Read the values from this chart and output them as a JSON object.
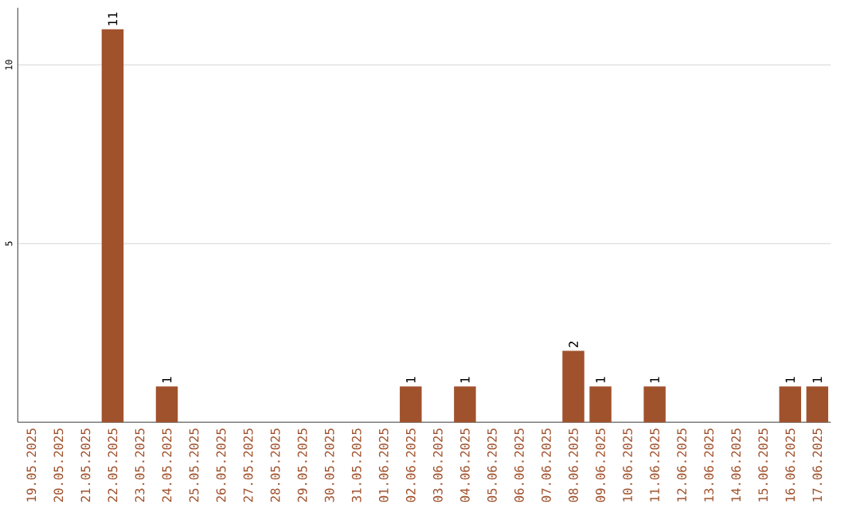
{
  "chart_data": {
    "type": "bar",
    "categories": [
      "19.05.2025",
      "20.05.2025",
      "21.05.2025",
      "22.05.2025",
      "23.05.2025",
      "24.05.2025",
      "25.05.2025",
      "26.05.2025",
      "27.05.2025",
      "28.05.2025",
      "29.05.2025",
      "30.05.2025",
      "31.05.2025",
      "01.06.2025",
      "02.06.2025",
      "03.06.2025",
      "04.06.2025",
      "05.06.2025",
      "06.06.2025",
      "07.06.2025",
      "08.06.2025",
      "09.06.2025",
      "10.06.2025",
      "11.06.2025",
      "12.06.2025",
      "13.06.2025",
      "14.06.2025",
      "15.06.2025",
      "16.06.2025",
      "17.06.2025"
    ],
    "values": [
      0,
      0,
      0,
      11,
      0,
      1,
      0,
      0,
      0,
      0,
      0,
      0,
      0,
      0,
      1,
      0,
      1,
      0,
      0,
      0,
      2,
      1,
      0,
      1,
      0,
      0,
      0,
      0,
      1,
      1
    ],
    "value_labels": [
      null,
      null,
      null,
      "11",
      null,
      "1",
      null,
      null,
      null,
      null,
      null,
      null,
      null,
      null,
      "1",
      null,
      "1",
      null,
      null,
      null,
      "2",
      "1",
      null,
      "1",
      null,
      null,
      null,
      null,
      "1",
      "1"
    ],
    "color": "#a0522d",
    "ylim": [
      0,
      11.6
    ],
    "yticks": [
      5,
      10
    ],
    "grid": "y"
  }
}
